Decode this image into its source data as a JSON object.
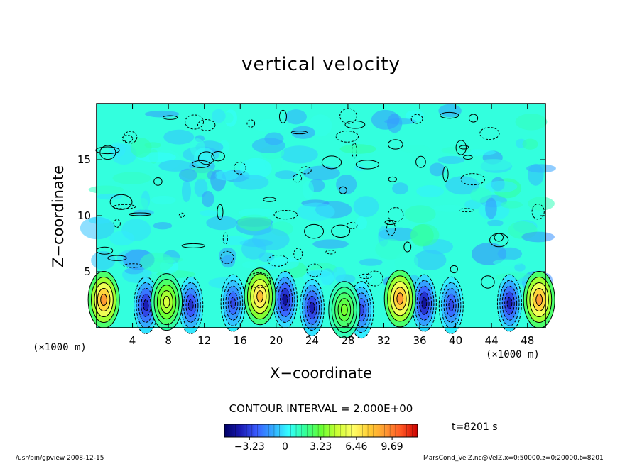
{
  "footer": {
    "left": "/usr/bin/gpview   2008-12-15",
    "right": "MarsCond_VelZ.nc@VelZ,x=0:50000,z=0:20000,t=8201"
  },
  "annotation": {
    "contour_interval": "CONTOUR INTERVAL = 2.000E+00",
    "time": "t=8201  s"
  },
  "colors": {
    "colormap": [
      "#000066",
      "#1a1ab3",
      "#3a5cff",
      "#33aaff",
      "#33ffff",
      "#33ff99",
      "#66ff33",
      "#ccff33",
      "#ffff66",
      "#ffcc33",
      "#ff9933",
      "#ff5522",
      "#cc0000"
    ],
    "background_field": "#33ee77",
    "contour_line": "#000000"
  },
  "chart_data": {
    "type": "heatmap",
    "title": "vertical velocity",
    "xlabel": "X−coordinate",
    "ylabel": "Z−coordinate",
    "x_unit": "(×1000 m)",
    "y_unit": "(×1000 m)",
    "xlim": [
      0,
      50
    ],
    "ylim": [
      0,
      20
    ],
    "x_ticks": [
      "4",
      "8",
      "12",
      "16",
      "20",
      "24",
      "28",
      "32",
      "36",
      "40",
      "44",
      "48"
    ],
    "y_ticks": [
      "5",
      "10",
      "15"
    ],
    "colorbar": {
      "vmin": -5.5,
      "vmax": 12.0,
      "tick_values": [
        -3.23,
        0,
        3.23,
        6.46,
        9.69
      ],
      "tick_labels": [
        "−3.23",
        "0",
        "3.23",
        "6.46",
        "9.69"
      ]
    },
    "updrafts": [
      {
        "x": 0.8,
        "z": 2.5,
        "peak": 9.0
      },
      {
        "x": 7.8,
        "z": 2.3,
        "peak": 5.0
      },
      {
        "x": 18.2,
        "z": 2.8,
        "peak": 8.0
      },
      {
        "x": 27.6,
        "z": 1.6,
        "peak": 3.5
      },
      {
        "x": 33.8,
        "z": 2.6,
        "peak": 9.0
      },
      {
        "x": 49.3,
        "z": 2.5,
        "peak": 9.0
      }
    ],
    "downdrafts": [
      {
        "x": 5.5,
        "z": 2.0,
        "peak": -4.0
      },
      {
        "x": 10.5,
        "z": 2.0,
        "peak": -3.5
      },
      {
        "x": 15.2,
        "z": 2.2,
        "peak": -3.0
      },
      {
        "x": 21.0,
        "z": 2.5,
        "peak": -4.5
      },
      {
        "x": 24.0,
        "z": 1.8,
        "peak": -4.0
      },
      {
        "x": 29.5,
        "z": 1.6,
        "peak": -3.0
      },
      {
        "x": 36.5,
        "z": 2.2,
        "peak": -4.5
      },
      {
        "x": 39.5,
        "z": 2.0,
        "peak": -3.0
      },
      {
        "x": 46.0,
        "z": 2.2,
        "peak": -4.0
      }
    ]
  }
}
